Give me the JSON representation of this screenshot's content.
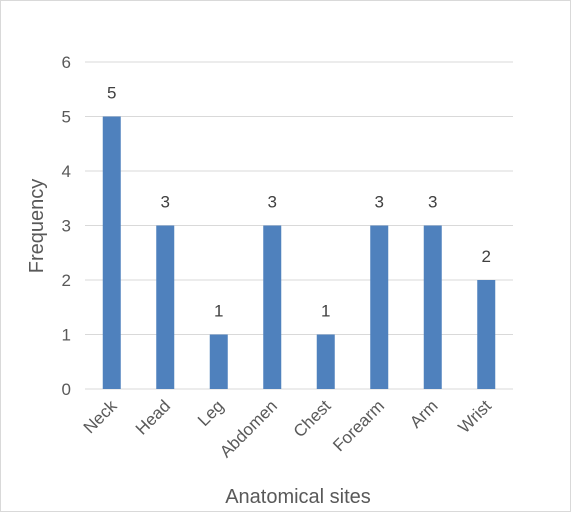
{
  "chart_data": {
    "type": "bar",
    "title": "",
    "xlabel": "Anatomical sites",
    "ylabel": "Frequency",
    "categories": [
      "Neck",
      "Head",
      "Leg",
      "Abdomen",
      "Chest",
      "Forearm",
      "Arm",
      "Wrist"
    ],
    "values": [
      5,
      3,
      1,
      3,
      1,
      3,
      3,
      2
    ],
    "ylim": [
      0,
      6
    ],
    "yticks": [
      "0",
      "1",
      "2",
      "3",
      "4",
      "5",
      "6"
    ],
    "grid": true,
    "legend": "none",
    "bar_color": "#4f81bd",
    "grid_color": "#d9d9d9"
  }
}
